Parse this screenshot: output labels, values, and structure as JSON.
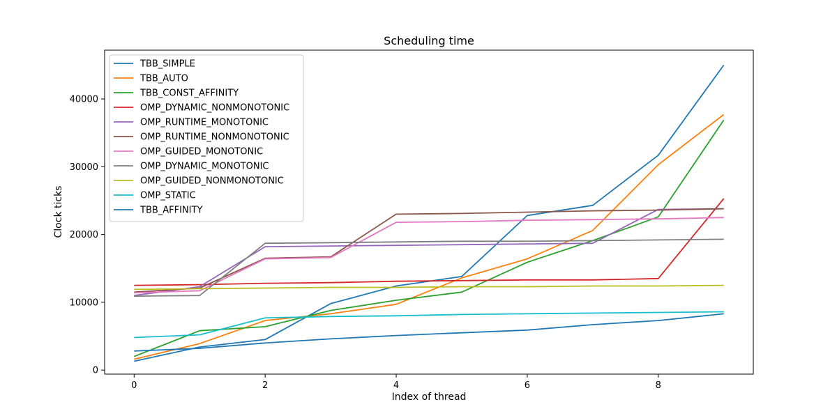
{
  "chart_data": {
    "type": "line",
    "title": "Scheduling time",
    "xlabel": "Index of thread",
    "ylabel": "Clock ticks",
    "xlim": [
      -0.45,
      9.45
    ],
    "ylim": [
      -600,
      47200
    ],
    "x": [
      0,
      1,
      2,
      3,
      4,
      5,
      6,
      7,
      8,
      9
    ],
    "xticks": [
      0,
      2,
      4,
      6,
      8
    ],
    "yticks": [
      0,
      10000,
      20000,
      30000,
      40000
    ],
    "grid": false,
    "legend_position": "upper-left",
    "series": [
      {
        "name": "TBB_SIMPLE",
        "color": "#1f77b4",
        "values": [
          1300,
          3400,
          4500,
          9800,
          12400,
          13800,
          22800,
          24300,
          31700,
          45000
        ]
      },
      {
        "name": "TBB_AUTO",
        "color": "#ff7f0e",
        "values": [
          1600,
          3900,
          7300,
          8300,
          9700,
          13600,
          16400,
          20600,
          30300,
          37700
        ]
      },
      {
        "name": "TBB_CONST_AFFINITY",
        "color": "#2ca02c",
        "values": [
          2000,
          5800,
          6400,
          8800,
          10300,
          11500,
          15900,
          19100,
          22600,
          36900
        ]
      },
      {
        "name": "OMP_DYNAMIC_NONMONOTONIC",
        "color": "#d62728",
        "values": [
          12500,
          12600,
          12800,
          12900,
          13100,
          13200,
          13300,
          13300,
          13500,
          25300
        ]
      },
      {
        "name": "OMP_RUNTIME_MONOTONIC",
        "color": "#9467bd",
        "values": [
          11000,
          12300,
          18200,
          18300,
          18400,
          18500,
          18600,
          18700,
          23700,
          23800
        ]
      },
      {
        "name": "OMP_RUNTIME_NONMONOTONIC",
        "color": "#8c564b",
        "values": [
          11500,
          12100,
          16500,
          16700,
          23000,
          23100,
          23300,
          23500,
          23600,
          23800
        ]
      },
      {
        "name": "OMP_GUIDED_MONOTONIC",
        "color": "#e377c2",
        "values": [
          11400,
          11700,
          16400,
          16600,
          21800,
          21900,
          22100,
          22200,
          22300,
          22500
        ]
      },
      {
        "name": "OMP_DYNAMIC_MONOTONIC",
        "color": "#7f7f7f",
        "values": [
          10900,
          11000,
          18700,
          18800,
          18900,
          19000,
          19000,
          19100,
          19200,
          19300
        ]
      },
      {
        "name": "OMP_GUIDED_NONMONOTONIC",
        "color": "#bcbd22",
        "values": [
          11900,
          12000,
          12100,
          12200,
          12200,
          12300,
          12300,
          12400,
          12400,
          12500
        ]
      },
      {
        "name": "OMP_STATIC",
        "color": "#17becf",
        "values": [
          4800,
          5200,
          7700,
          7900,
          8000,
          8200,
          8300,
          8400,
          8500,
          8600
        ]
      },
      {
        "name": "TBB_AFFINITY",
        "color": "#1f77b4",
        "values": [
          2800,
          3200,
          4000,
          4600,
          5100,
          5500,
          5900,
          6700,
          7300,
          8300
        ]
      }
    ]
  }
}
